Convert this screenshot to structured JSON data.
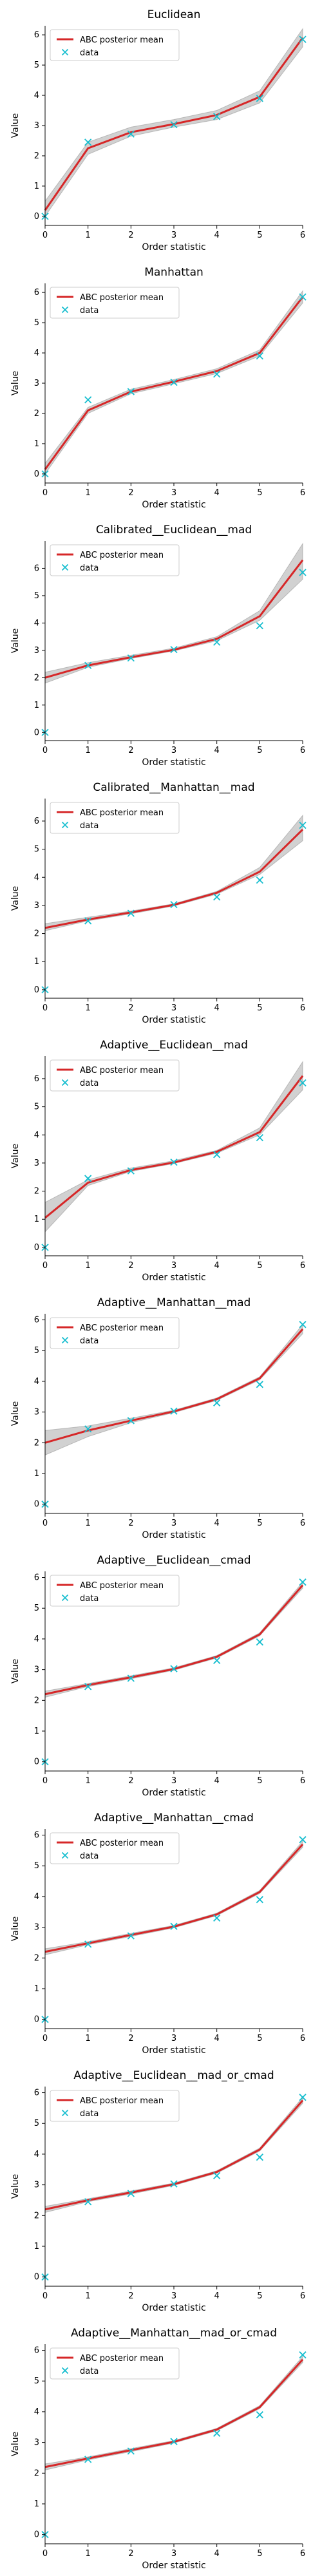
{
  "figure": {
    "xlabel": "Order statistic",
    "ylabel": "Value"
  },
  "colors": {
    "mean": "#d62728",
    "band": "#9a9a9a",
    "data": "#17becf",
    "axis": "#000000"
  },
  "legend": {
    "mean_label": "ABC posterior mean",
    "data_label": "data",
    "placement": "top-left"
  },
  "chart_data": [
    {
      "type": "line",
      "title": "Euclidean",
      "xlabel": "Order statistic",
      "ylabel": "Value",
      "xlim": [
        0,
        6
      ],
      "ylim": [
        -0.3,
        6.3
      ],
      "x": [
        0,
        1,
        2,
        3,
        4,
        5,
        6
      ],
      "xticks": [
        0,
        1,
        2,
        3,
        4,
        5,
        6
      ],
      "yticks": [
        0,
        1,
        2,
        3,
        4,
        5,
        6
      ],
      "series": [
        {
          "name": "ABC posterior mean",
          "values": [
            0.2,
            2.25,
            2.78,
            3.05,
            3.35,
            3.95,
            5.9
          ]
        },
        {
          "name": "data",
          "values": [
            0.0,
            2.45,
            2.72,
            3.03,
            3.3,
            3.9,
            5.85
          ]
        }
      ],
      "band": {
        "lower": [
          0.0,
          2.05,
          2.65,
          2.95,
          3.2,
          3.75,
          5.6
        ],
        "upper": [
          0.5,
          2.45,
          2.95,
          3.2,
          3.5,
          4.15,
          6.2
        ]
      }
    },
    {
      "type": "line",
      "title": "Manhattan",
      "xlabel": "Order statistic",
      "ylabel": "Value",
      "xlim": [
        0,
        6
      ],
      "ylim": [
        -0.3,
        6.3
      ],
      "x": [
        0,
        1,
        2,
        3,
        4,
        5,
        6
      ],
      "xticks": [
        0,
        1,
        2,
        3,
        4,
        5,
        6
      ],
      "yticks": [
        0,
        1,
        2,
        3,
        4,
        5,
        6
      ],
      "series": [
        {
          "name": "ABC posterior mean",
          "values": [
            0.15,
            2.1,
            2.72,
            3.05,
            3.4,
            4.0,
            5.85
          ]
        },
        {
          "name": "data",
          "values": [
            0.0,
            2.45,
            2.72,
            3.03,
            3.3,
            3.9,
            5.85
          ]
        }
      ],
      "band": {
        "lower": [
          0.0,
          2.0,
          2.65,
          2.98,
          3.32,
          3.9,
          5.65
        ],
        "upper": [
          0.35,
          2.2,
          2.8,
          3.12,
          3.48,
          4.1,
          6.05
        ]
      }
    },
    {
      "type": "line",
      "title": "Calibrated__Euclidean__mad",
      "xlabel": "Order statistic",
      "ylabel": "Value",
      "xlim": [
        0,
        6
      ],
      "ylim": [
        -0.3,
        7.0
      ],
      "x": [
        0,
        1,
        2,
        3,
        4,
        5,
        6
      ],
      "xticks": [
        0,
        1,
        2,
        3,
        4,
        5,
        6
      ],
      "yticks": [
        0,
        1,
        2,
        3,
        4,
        5,
        6
      ],
      "series": [
        {
          "name": "ABC posterior mean",
          "values": [
            2.0,
            2.45,
            2.75,
            3.02,
            3.42,
            4.25,
            6.3
          ]
        },
        {
          "name": "data",
          "values": [
            0.0,
            2.45,
            2.72,
            3.03,
            3.3,
            3.9,
            5.85
          ]
        }
      ],
      "band": {
        "lower": [
          1.8,
          2.38,
          2.7,
          2.98,
          3.35,
          4.1,
          5.6
        ],
        "upper": [
          2.2,
          2.55,
          2.82,
          3.08,
          3.5,
          4.45,
          6.9
        ]
      }
    },
    {
      "type": "line",
      "title": "Calibrated__Manhattan__mad",
      "xlabel": "Order statistic",
      "ylabel": "Value",
      "xlim": [
        0,
        6
      ],
      "ylim": [
        -0.3,
        6.8
      ],
      "x": [
        0,
        1,
        2,
        3,
        4,
        5,
        6
      ],
      "xticks": [
        0,
        1,
        2,
        3,
        4,
        5,
        6
      ],
      "yticks": [
        0,
        1,
        2,
        3,
        4,
        5,
        6
      ],
      "series": [
        {
          "name": "ABC posterior mean",
          "values": [
            2.2,
            2.5,
            2.75,
            3.02,
            3.45,
            4.2,
            5.7
          ]
        },
        {
          "name": "data",
          "values": [
            0.0,
            2.45,
            2.72,
            3.03,
            3.3,
            3.9,
            5.85
          ]
        }
      ],
      "band": {
        "lower": [
          2.1,
          2.45,
          2.7,
          2.98,
          3.4,
          4.1,
          5.3
        ],
        "upper": [
          2.35,
          2.58,
          2.8,
          3.06,
          3.5,
          4.35,
          6.2
        ]
      }
    },
    {
      "type": "line",
      "title": "Adaptive__Euclidean__mad",
      "xlabel": "Order statistic",
      "ylabel": "Value",
      "xlim": [
        0,
        6
      ],
      "ylim": [
        -0.3,
        6.8
      ],
      "x": [
        0,
        1,
        2,
        3,
        4,
        5,
        6
      ],
      "xticks": [
        0,
        1,
        2,
        3,
        4,
        5,
        6
      ],
      "yticks": [
        0,
        1,
        2,
        3,
        4,
        5,
        6
      ],
      "series": [
        {
          "name": "ABC posterior mean",
          "values": [
            1.05,
            2.3,
            2.75,
            3.02,
            3.4,
            4.1,
            6.1
          ]
        },
        {
          "name": "data",
          "values": [
            0.0,
            2.45,
            2.72,
            3.03,
            3.3,
            3.9,
            5.85
          ]
        }
      ],
      "band": {
        "lower": [
          0.55,
          2.2,
          2.7,
          2.98,
          3.35,
          4.0,
          5.6
        ],
        "upper": [
          1.6,
          2.4,
          2.82,
          3.08,
          3.45,
          4.25,
          6.6
        ]
      }
    },
    {
      "type": "line",
      "title": "Adaptive__Manhattan__mad",
      "xlabel": "Order statistic",
      "ylabel": "Value",
      "xlim": [
        0,
        6
      ],
      "ylim": [
        -0.3,
        6.2
      ],
      "x": [
        0,
        1,
        2,
        3,
        4,
        5,
        6
      ],
      "xticks": [
        0,
        1,
        2,
        3,
        4,
        5,
        6
      ],
      "yticks": [
        0,
        1,
        2,
        3,
        4,
        5,
        6
      ],
      "series": [
        {
          "name": "ABC posterior mean",
          "values": [
            2.0,
            2.4,
            2.72,
            3.02,
            3.42,
            4.1,
            5.7
          ]
        },
        {
          "name": "data",
          "values": [
            0.0,
            2.45,
            2.72,
            3.03,
            3.3,
            3.9,
            5.85
          ]
        }
      ],
      "band": {
        "lower": [
          1.6,
          2.2,
          2.65,
          2.98,
          3.38,
          4.05,
          5.55
        ],
        "upper": [
          2.4,
          2.55,
          2.8,
          3.06,
          3.46,
          4.15,
          5.85
        ]
      }
    },
    {
      "type": "line",
      "title": "Adaptive__Euclidean__cmad",
      "xlabel": "Order statistic",
      "ylabel": "Value",
      "xlim": [
        0,
        6
      ],
      "ylim": [
        -0.3,
        6.2
      ],
      "x": [
        0,
        1,
        2,
        3,
        4,
        5,
        6
      ],
      "xticks": [
        0,
        1,
        2,
        3,
        4,
        5,
        6
      ],
      "yticks": [
        0,
        1,
        2,
        3,
        4,
        5,
        6
      ],
      "series": [
        {
          "name": "ABC posterior mean",
          "values": [
            2.2,
            2.5,
            2.75,
            3.02,
            3.42,
            4.15,
            5.75
          ]
        },
        {
          "name": "data",
          "values": [
            0.0,
            2.45,
            2.72,
            3.03,
            3.3,
            3.9,
            5.85
          ]
        }
      ],
      "band": {
        "lower": [
          2.1,
          2.45,
          2.7,
          2.98,
          3.38,
          4.1,
          5.65
        ],
        "upper": [
          2.3,
          2.55,
          2.8,
          3.06,
          3.46,
          4.2,
          5.85
        ]
      }
    },
    {
      "type": "line",
      "title": "Adaptive__Manhattan__cmad",
      "xlabel": "Order statistic",
      "ylabel": "Value",
      "xlim": [
        0,
        6
      ],
      "ylim": [
        -0.3,
        6.2
      ],
      "x": [
        0,
        1,
        2,
        3,
        4,
        5,
        6
      ],
      "xticks": [
        0,
        1,
        2,
        3,
        4,
        5,
        6
      ],
      "yticks": [
        0,
        1,
        2,
        3,
        4,
        5,
        6
      ],
      "series": [
        {
          "name": "ABC posterior mean",
          "values": [
            2.2,
            2.48,
            2.75,
            3.02,
            3.42,
            4.15,
            5.7
          ]
        },
        {
          "name": "data",
          "values": [
            0.0,
            2.45,
            2.72,
            3.03,
            3.3,
            3.9,
            5.85
          ]
        }
      ],
      "band": {
        "lower": [
          2.1,
          2.43,
          2.7,
          2.98,
          3.38,
          4.1,
          5.6
        ],
        "upper": [
          2.3,
          2.53,
          2.8,
          3.06,
          3.46,
          4.2,
          5.8
        ]
      }
    },
    {
      "type": "line",
      "title": "Adaptive__Euclidean__mad_or_cmad",
      "xlabel": "Order statistic",
      "ylabel": "Value",
      "xlim": [
        0,
        6
      ],
      "ylim": [
        -0.3,
        6.2
      ],
      "x": [
        0,
        1,
        2,
        3,
        4,
        5,
        6
      ],
      "xticks": [
        0,
        1,
        2,
        3,
        4,
        5,
        6
      ],
      "yticks": [
        0,
        1,
        2,
        3,
        4,
        5,
        6
      ],
      "series": [
        {
          "name": "ABC posterior mean",
          "values": [
            2.2,
            2.5,
            2.75,
            3.02,
            3.42,
            4.15,
            5.75
          ]
        },
        {
          "name": "data",
          "values": [
            0.0,
            2.45,
            2.72,
            3.03,
            3.3,
            3.9,
            5.85
          ]
        }
      ],
      "band": {
        "lower": [
          2.1,
          2.45,
          2.7,
          2.98,
          3.38,
          4.1,
          5.65
        ],
        "upper": [
          2.3,
          2.55,
          2.8,
          3.06,
          3.46,
          4.2,
          5.85
        ]
      }
    },
    {
      "type": "line",
      "title": "Adaptive__Manhattan__mad_or_cmad",
      "xlabel": "Order statistic",
      "ylabel": "Value",
      "xlim": [
        0,
        6
      ],
      "ylim": [
        -0.3,
        6.2
      ],
      "x": [
        0,
        1,
        2,
        3,
        4,
        5,
        6
      ],
      "xticks": [
        0,
        1,
        2,
        3,
        4,
        5,
        6
      ],
      "yticks": [
        0,
        1,
        2,
        3,
        4,
        5,
        6
      ],
      "series": [
        {
          "name": "ABC posterior mean",
          "values": [
            2.2,
            2.48,
            2.75,
            3.02,
            3.42,
            4.15,
            5.7
          ]
        },
        {
          "name": "data",
          "values": [
            0.0,
            2.45,
            2.72,
            3.03,
            3.3,
            3.9,
            5.85
          ]
        }
      ],
      "band": {
        "lower": [
          2.1,
          2.43,
          2.7,
          2.98,
          3.38,
          4.1,
          5.6
        ],
        "upper": [
          2.3,
          2.53,
          2.8,
          3.06,
          3.46,
          4.2,
          5.8
        ]
      }
    }
  ]
}
